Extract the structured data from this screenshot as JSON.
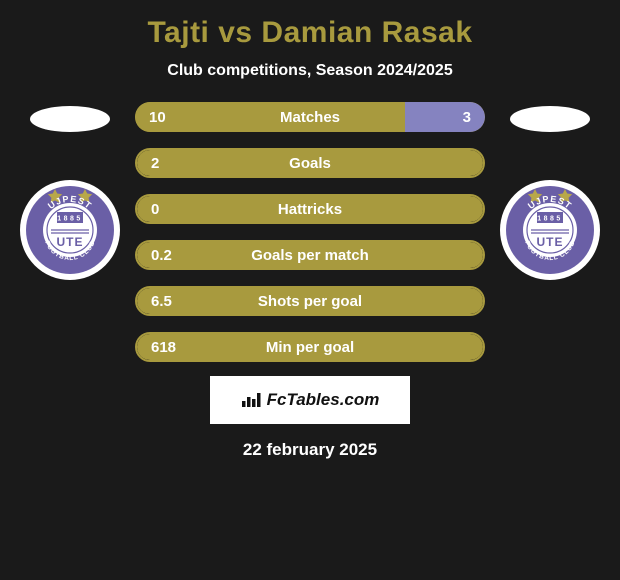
{
  "title": "Tajti vs Damian Rasak",
  "subtitle": "Club competitions, Season 2024/2025",
  "date": "22 february 2025",
  "fctables_label": "FcTables.com",
  "colors": {
    "background": "#1a1a1a",
    "left_series": "#a89a3e",
    "right_series": "#8583c0",
    "text_white": "#ffffff",
    "badge_ring": "#6a5fa6",
    "badge_ring_outer": "#ffffff"
  },
  "stats": [
    {
      "label": "Matches",
      "left_val": "10",
      "right_val": "3",
      "left_pct": 77,
      "right_pct": 23,
      "show_right": true
    },
    {
      "label": "Goals",
      "left_val": "2",
      "right_val": "",
      "left_pct": 100,
      "right_pct": 0,
      "show_right": false
    },
    {
      "label": "Hattricks",
      "left_val": "0",
      "right_val": "",
      "left_pct": 100,
      "right_pct": 0,
      "show_right": false
    },
    {
      "label": "Goals per match",
      "left_val": "0.2",
      "right_val": "",
      "left_pct": 100,
      "right_pct": 0,
      "show_right": false
    },
    {
      "label": "Shots per goal",
      "left_val": "6.5",
      "right_val": "",
      "left_pct": 100,
      "right_pct": 0,
      "show_right": false
    },
    {
      "label": "Min per goal",
      "left_val": "618",
      "right_val": "",
      "left_pct": 100,
      "right_pct": 0,
      "show_right": false
    }
  ],
  "club": {
    "name_top": "UJPEST",
    "name_bottom": "FOOTBALL CLUB",
    "center": "UTE",
    "year": "1885"
  }
}
